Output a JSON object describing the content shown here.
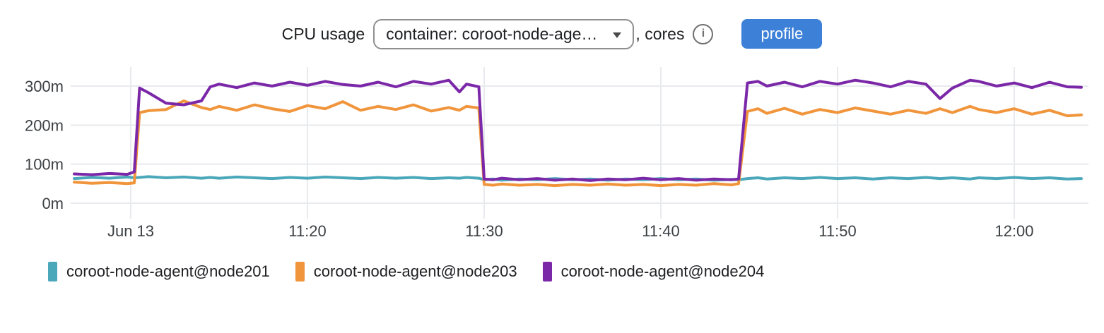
{
  "header": {
    "title_prefix": "CPU usage",
    "selector_value": "container: coroot-node-age…",
    "title_suffix": ", cores",
    "info_glyph": "i",
    "info_icon_name": "info-icon",
    "profile_label": "profile",
    "profile_button_color": "#3d80d8"
  },
  "chart_data": {
    "type": "line",
    "title": "CPU usage, cores",
    "ylabel": "",
    "xlabel": "",
    "unit": "m = millicores",
    "x_unit": "minutes after 11:00 on Jun 13",
    "xlim": [
      6.6,
      64.2
    ],
    "ylim": [
      0,
      349
    ],
    "grid": true,
    "legend_position": "bottom",
    "y_ticks": [
      {
        "v": 0,
        "label": "0m"
      },
      {
        "v": 100,
        "label": "100m"
      },
      {
        "v": 200,
        "label": "200m"
      },
      {
        "v": 300,
        "label": "300m"
      }
    ],
    "x_ticks": [
      {
        "t": 10,
        "label": "Jun 13"
      },
      {
        "t": 20,
        "label": "11:20"
      },
      {
        "t": 30,
        "label": "11:30"
      },
      {
        "t": 40,
        "label": "11:40"
      },
      {
        "t": 50,
        "label": "11:50"
      },
      {
        "t": 60,
        "label": "12:00"
      }
    ],
    "x": [
      6.8,
      7.8,
      8.8,
      9.8,
      10.2,
      10.5,
      11,
      12,
      13,
      14,
      14.5,
      15,
      16,
      17,
      18,
      19,
      20,
      21,
      22,
      23,
      24,
      25,
      26,
      27,
      28,
      28.6,
      29,
      29.7,
      30,
      30.5,
      31,
      32,
      33,
      34,
      35,
      36,
      37,
      38,
      39,
      40,
      41,
      42,
      43,
      44,
      44.4,
      44.9,
      45.5,
      46,
      47,
      48,
      49,
      50,
      51,
      52,
      53,
      54,
      55,
      55.8,
      56.5,
      57.5,
      58,
      59,
      60,
      61,
      62,
      63,
      63.8
    ],
    "series": [
      {
        "name": "coroot-node-agent@node201",
        "color": "#4BA8BA",
        "values": [
          63,
          66,
          64,
          67,
          65,
          66,
          68,
          65,
          67,
          64,
          66,
          64,
          67,
          65,
          63,
          66,
          64,
          67,
          65,
          63,
          66,
          64,
          66,
          63,
          65,
          64,
          66,
          64,
          60,
          62,
          59,
          62,
          60,
          63,
          60,
          62,
          59,
          62,
          60,
          63,
          60,
          62,
          59,
          61,
          60,
          63,
          65,
          62,
          65,
          63,
          66,
          63,
          65,
          62,
          65,
          63,
          66,
          63,
          65,
          62,
          65,
          63,
          66,
          63,
          65,
          62,
          63
        ]
      },
      {
        "name": "coroot-node-agent@node203",
        "color": "#F0953C",
        "values": [
          54,
          51,
          53,
          50,
          52,
          232,
          237,
          240,
          262,
          245,
          240,
          248,
          238,
          252,
          242,
          235,
          250,
          242,
          260,
          238,
          248,
          240,
          252,
          236,
          245,
          238,
          248,
          244,
          48,
          46,
          49,
          46,
          48,
          45,
          48,
          46,
          49,
          46,
          48,
          45,
          48,
          46,
          50,
          47,
          50,
          235,
          242,
          230,
          243,
          228,
          240,
          232,
          244,
          236,
          228,
          238,
          230,
          242,
          232,
          248,
          240,
          232,
          242,
          228,
          238,
          224,
          226
        ]
      },
      {
        "name": "coroot-node-agent@node204",
        "color": "#7B28A8",
        "values": [
          75,
          73,
          76,
          74,
          80,
          295,
          283,
          256,
          252,
          262,
          298,
          305,
          296,
          308,
          300,
          310,
          302,
          312,
          304,
          300,
          310,
          298,
          312,
          305,
          315,
          285,
          305,
          298,
          62,
          60,
          64,
          60,
          63,
          59,
          62,
          58,
          62,
          60,
          64,
          60,
          63,
          59,
          62,
          60,
          62,
          308,
          312,
          300,
          310,
          298,
          312,
          305,
          315,
          308,
          298,
          312,
          305,
          268,
          295,
          315,
          312,
          300,
          308,
          296,
          310,
          298,
          297
        ]
      }
    ]
  }
}
